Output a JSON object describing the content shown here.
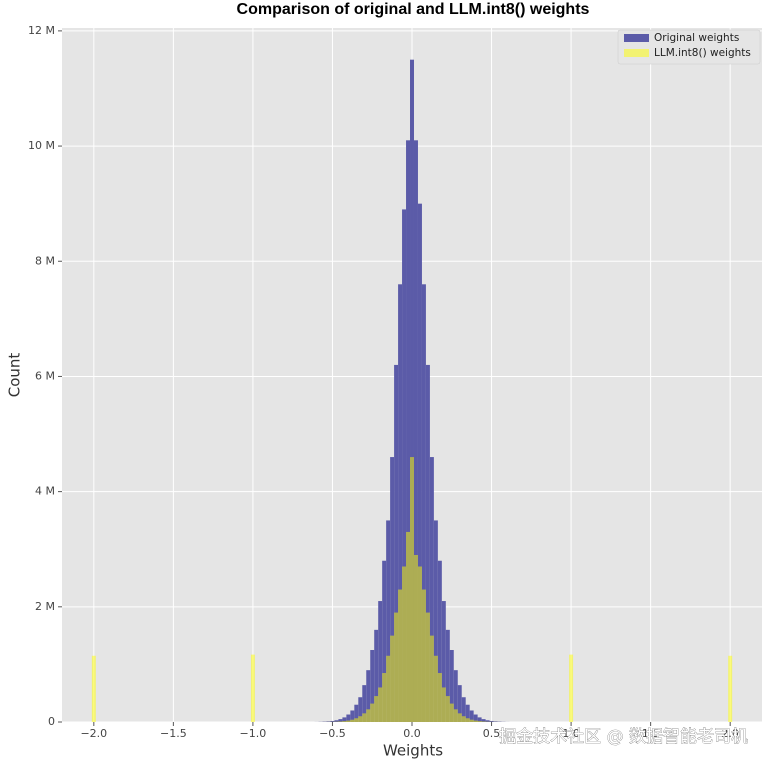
{
  "chart_data": {
    "type": "histogram",
    "title": "Comparison of original and LLM.int8() weights",
    "xlabel": "Weights",
    "ylabel": "Count",
    "watermark": "掘金技术社区 @ 数据智能老司机",
    "xlim": [
      -2.2,
      2.2
    ],
    "ylim": [
      0,
      12050000
    ],
    "xticks": [
      {
        "value": -2.0,
        "label": "−2.0"
      },
      {
        "value": -1.5,
        "label": "−1.5"
      },
      {
        "value": -1.0,
        "label": "−1.0"
      },
      {
        "value": -0.5,
        "label": "−0.5"
      },
      {
        "value": 0.0,
        "label": "0.0"
      },
      {
        "value": 0.5,
        "label": "0.5"
      },
      {
        "value": 1.0,
        "label": "1.0"
      },
      {
        "value": 1.5,
        "label": "1.5"
      },
      {
        "value": 2.0,
        "label": "2.0"
      }
    ],
    "yticks": [
      0,
      {
        "value": 2000000,
        "label": "2 M"
      },
      {
        "value": 4000000,
        "label": "4 M"
      },
      {
        "value": 6000000,
        "label": "6 M"
      },
      {
        "value": 8000000,
        "label": "8 M"
      },
      {
        "value": 10000000,
        "label": "10 M"
      },
      {
        "value": 12000000,
        "label": "12 M"
      }
    ],
    "grid": true,
    "legend": "upper right",
    "series": [
      {
        "name": "Original weights",
        "color": "#5b5ba8",
        "bins": [
          -0.6125,
          -0.5875,
          -0.5625,
          -0.5375,
          -0.5125,
          -0.4875,
          -0.4625,
          -0.4375,
          -0.4125,
          -0.3875,
          -0.3625,
          -0.3375,
          -0.3125,
          -0.2875,
          -0.2625,
          -0.2375,
          -0.2125,
          -0.1875,
          -0.1625,
          -0.1375,
          -0.1125,
          -0.0875,
          -0.0625,
          -0.0375,
          -0.0125,
          0.0125,
          0.0375,
          0.0625,
          0.0875,
          0.1125,
          0.1375,
          0.1625,
          0.1875,
          0.2125,
          0.2375,
          0.2625,
          0.2875,
          0.3125,
          0.3375,
          0.3625,
          0.3875,
          0.4125,
          0.4375,
          0.4625,
          0.4875,
          0.5125,
          0.5375,
          0.5625,
          0.5875,
          0.6125
        ],
        "values": [
          1000,
          3000,
          6000,
          10000,
          18000,
          30000,
          50000,
          80000,
          130000,
          200000,
          300000,
          430000,
          640000,
          900000,
          1250000,
          1600000,
          2100000,
          2800000,
          3500000,
          4600000,
          6200000,
          7600000,
          8900000,
          10100000,
          11500000,
          10100000,
          9000000,
          7600000,
          6200000,
          4600000,
          3500000,
          2800000,
          2100000,
          1600000,
          1250000,
          900000,
          640000,
          430000,
          300000,
          200000,
          130000,
          80000,
          50000,
          30000,
          18000,
          10000,
          6000,
          3000,
          1000
        ]
      },
      {
        "name": "LLM.int8() weights",
        "color": "#ffff00",
        "bins": [
          -2.0125,
          -1.9875,
          -1.0125,
          -0.9875,
          -0.6125,
          -0.5875,
          -0.5625,
          -0.5375,
          -0.5125,
          -0.4875,
          -0.4625,
          -0.4375,
          -0.4125,
          -0.3875,
          -0.3625,
          -0.3375,
          -0.3125,
          -0.2875,
          -0.2625,
          -0.2375,
          -0.2125,
          -0.1875,
          -0.1625,
          -0.1375,
          -0.1125,
          -0.0875,
          -0.0625,
          -0.0375,
          -0.0125,
          0.0125,
          0.0375,
          0.0625,
          0.0875,
          0.1125,
          0.1375,
          0.1625,
          0.1875,
          0.2125,
          0.2375,
          0.2625,
          0.2875,
          0.3125,
          0.3375,
          0.3625,
          0.3875,
          0.4125,
          0.4375,
          0.4625,
          0.4875,
          0.5125,
          0.5375,
          0.5625,
          0.5875,
          0.6125,
          0.9875,
          1.0125,
          1.9875,
          2.0125
        ],
        "values": [
          1150000,
          0,
          1170000,
          0,
          200,
          500,
          1000,
          2000,
          3000,
          5000,
          9000,
          15000,
          25000,
          40000,
          65000,
          100000,
          150000,
          220000,
          320000,
          450000,
          600000,
          850000,
          1150000,
          1500000,
          1900000,
          2300000,
          2700000,
          3300000,
          4600000,
          2900000,
          2700000,
          2300000,
          1900000,
          1500000,
          1150000,
          850000,
          600000,
          450000,
          320000,
          220000,
          150000,
          100000,
          65000,
          40000,
          25000,
          15000,
          9000,
          5000,
          3000,
          2000,
          1000,
          500,
          200,
          0,
          1170000,
          0,
          1150000
        ]
      }
    ]
  }
}
